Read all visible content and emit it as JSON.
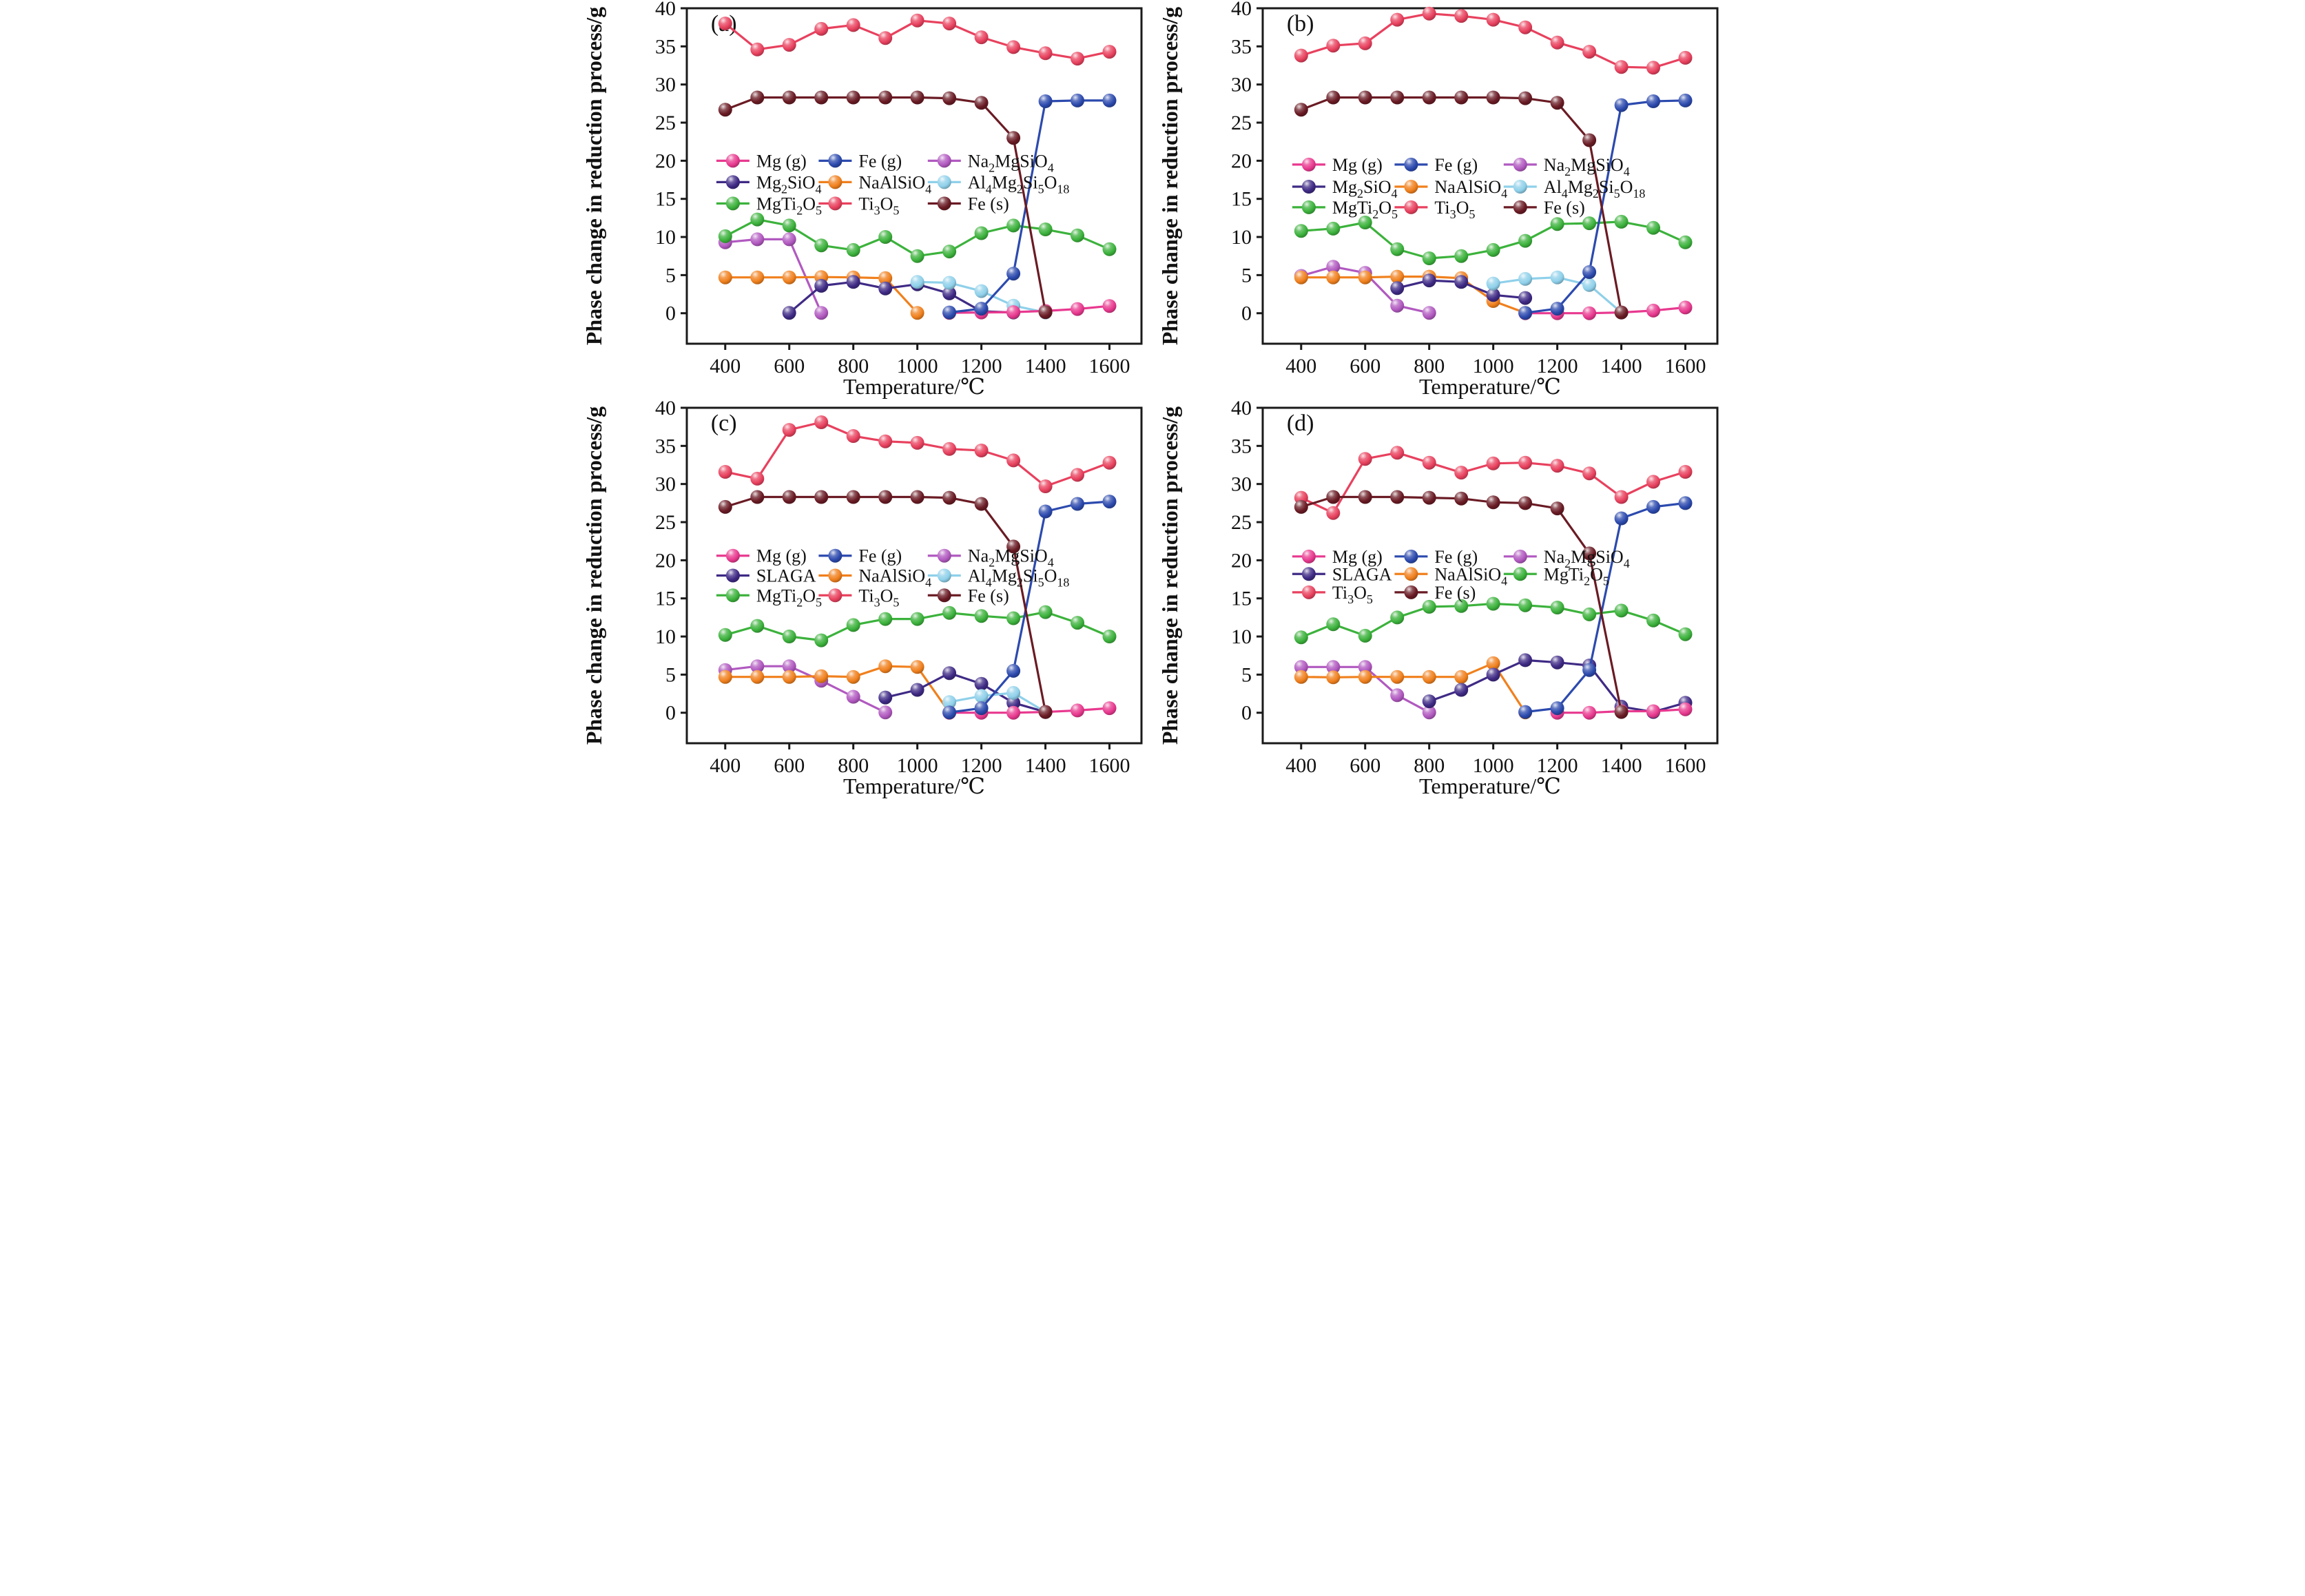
{
  "figure": {
    "background": "#ffffff",
    "ylabel": "Phase change in reduction process/g",
    "xlabel": "Temperature/℃",
    "x_ticks": [
      400,
      600,
      800,
      1000,
      1200,
      1400,
      1600
    ],
    "y_ticks": [
      0,
      5,
      10,
      15,
      20,
      25,
      30,
      35,
      40
    ],
    "x_domain": [
      280,
      1700
    ],
    "y_domain": [
      -4,
      40
    ],
    "frame_color": "#1a1a1a"
  },
  "series_palette": {
    "mg_g": {
      "name": "Mg (g)",
      "color": "#E8398F"
    },
    "fe_g": {
      "name": "Fe (g)",
      "color": "#2C4AAE"
    },
    "na2mgsio4": {
      "name": "Na_2MgSiO_4",
      "color": "#B159C0"
    },
    "mg2sio4": {
      "name": "Mg_2SiO_4",
      "color": "#3F2A85"
    },
    "slaga": {
      "name": "SLAGA",
      "color": "#3F2A85"
    },
    "naalsio4": {
      "name": "NaAlSiO_4",
      "color": "#F0801D"
    },
    "al4mg2si5o18": {
      "name": "Al_4Mg_2Si_5O_18",
      "color": "#8FD0EA"
    },
    "mgti2o5": {
      "name": "MgTi_2O_5",
      "color": "#3CB23C"
    },
    "ti3o5": {
      "name": "Ti_3O_5",
      "color": "#E8415E"
    },
    "fe_s": {
      "name": "Fe (s)",
      "color": "#6A1B24"
    }
  },
  "chart_data": [
    {
      "type": "line",
      "panel_label": "(a)",
      "legend_rows": [
        [
          "mg_g",
          "fe_g",
          "na2mgsio4"
        ],
        [
          "mg2sio4",
          "naalsio4",
          "al4mg2si5o18"
        ],
        [
          "mgti2o5",
          "ti3o5",
          "fe_s"
        ]
      ],
      "legend_row_y": [
        20.0,
        17.2,
        14.4
      ],
      "series": [
        {
          "id": "na2mgsio4",
          "x": [
            400,
            500,
            600,
            700
          ],
          "y": [
            9.3,
            9.7,
            9.7,
            0.05
          ]
        },
        {
          "id": "mgti2o5",
          "x": [
            400,
            500,
            600,
            700,
            800,
            900,
            1000,
            1100,
            1200,
            1300,
            1400,
            1500,
            1600
          ],
          "y": [
            10.1,
            12.3,
            11.5,
            8.9,
            8.3,
            10.0,
            7.5,
            8.1,
            10.5,
            11.5,
            11.0,
            10.2,
            8.4
          ]
        },
        {
          "id": "naalsio4",
          "x": [
            400,
            500,
            600,
            700,
            800,
            900,
            1000
          ],
          "y": [
            4.7,
            4.7,
            4.7,
            4.75,
            4.7,
            4.6,
            0.05
          ]
        },
        {
          "id": "mg2sio4",
          "x": [
            600,
            700,
            800,
            900,
            1000,
            1100,
            1200,
            1300
          ],
          "y": [
            0.05,
            3.6,
            4.1,
            3.25,
            3.8,
            2.6,
            0.25,
            0.1
          ]
        },
        {
          "id": "al4mg2si5o18",
          "x": [
            1000,
            1100,
            1200,
            1300,
            1400
          ],
          "y": [
            4.1,
            4.0,
            2.9,
            1.0,
            0.1
          ]
        },
        {
          "id": "mg_g",
          "x": [
            1100,
            1200,
            1300,
            1400,
            1500,
            1600
          ],
          "y": [
            0.05,
            0.1,
            0.15,
            0.3,
            0.55,
            0.95
          ]
        },
        {
          "id": "fe_g",
          "x": [
            1100,
            1200,
            1300,
            1400,
            1500,
            1600
          ],
          "y": [
            0.1,
            0.6,
            5.2,
            27.8,
            27.9,
            27.9
          ]
        },
        {
          "id": "ti3o5",
          "x": [
            400,
            500,
            600,
            700,
            800,
            900,
            1000,
            1100,
            1200,
            1300,
            1400,
            1500,
            1600
          ],
          "y": [
            38.0,
            34.6,
            35.2,
            37.3,
            37.8,
            36.1,
            38.4,
            38.0,
            36.2,
            34.9,
            34.1,
            33.4,
            34.3
          ]
        },
        {
          "id": "fe_s",
          "x": [
            400,
            500,
            600,
            700,
            800,
            900,
            1000,
            1100,
            1200,
            1300,
            1400
          ],
          "y": [
            26.7,
            28.3,
            28.3,
            28.3,
            28.3,
            28.3,
            28.3,
            28.2,
            27.6,
            23.0,
            0.15
          ]
        }
      ]
    },
    {
      "type": "line",
      "panel_label": "(b)",
      "legend_rows": [
        [
          "mg_g",
          "fe_g",
          "na2mgsio4"
        ],
        [
          "mg2sio4",
          "naalsio4",
          "al4mg2si5o18"
        ],
        [
          "mgti2o5",
          "ti3o5",
          "fe_s"
        ]
      ],
      "legend_row_y": [
        19.5,
        16.6,
        13.9
      ],
      "series": [
        {
          "id": "na2mgsio4",
          "x": [
            400,
            500,
            600,
            700,
            800
          ],
          "y": [
            4.9,
            6.1,
            5.3,
            1.0,
            0.05
          ]
        },
        {
          "id": "mgti2o5",
          "x": [
            400,
            500,
            600,
            700,
            800,
            900,
            1000,
            1100,
            1200,
            1300,
            1400,
            1500,
            1600
          ],
          "y": [
            10.8,
            11.1,
            11.9,
            8.4,
            7.2,
            7.5,
            8.3,
            9.5,
            11.7,
            11.8,
            12.0,
            11.2,
            9.3
          ]
        },
        {
          "id": "naalsio4",
          "x": [
            400,
            500,
            600,
            700,
            800,
            900,
            1000,
            1100
          ],
          "y": [
            4.7,
            4.7,
            4.7,
            4.8,
            4.8,
            4.6,
            1.6,
            0.05
          ]
        },
        {
          "id": "mg2sio4",
          "x": [
            700,
            800,
            900,
            1000,
            1100
          ],
          "y": [
            3.3,
            4.3,
            4.1,
            2.4,
            2.0
          ]
        },
        {
          "id": "al4mg2si5o18",
          "x": [
            1000,
            1100,
            1200,
            1300,
            1400
          ],
          "y": [
            3.9,
            4.5,
            4.7,
            3.7,
            0.1
          ]
        },
        {
          "id": "mg_g",
          "x": [
            1100,
            1200,
            1300,
            1400,
            1500,
            1600
          ],
          "y": [
            0.0,
            0.0,
            0.0,
            0.1,
            0.35,
            0.75
          ]
        },
        {
          "id": "fe_g",
          "x": [
            1100,
            1200,
            1300,
            1400,
            1500,
            1600
          ],
          "y": [
            0.05,
            0.6,
            5.4,
            27.3,
            27.8,
            27.9
          ]
        },
        {
          "id": "ti3o5",
          "x": [
            400,
            500,
            600,
            700,
            800,
            900,
            1000,
            1100,
            1200,
            1300,
            1400,
            1500,
            1600
          ],
          "y": [
            33.8,
            35.1,
            35.4,
            38.5,
            39.3,
            39.0,
            38.5,
            37.5,
            35.5,
            34.3,
            32.3,
            32.2,
            33.5
          ]
        },
        {
          "id": "fe_s",
          "x": [
            400,
            500,
            600,
            700,
            800,
            900,
            1000,
            1100,
            1200,
            1300,
            1400
          ],
          "y": [
            26.7,
            28.3,
            28.3,
            28.3,
            28.3,
            28.3,
            28.3,
            28.2,
            27.6,
            22.7,
            0.1
          ]
        }
      ]
    },
    {
      "type": "line",
      "panel_label": "(c)",
      "legend_rows": [
        [
          "mg_g",
          "fe_g",
          "na2mgsio4"
        ],
        [
          "slaga",
          "naalsio4",
          "al4mg2si5o18"
        ],
        [
          "mgti2o5",
          "ti3o5",
          "fe_s"
        ]
      ],
      "legend_row_y": [
        20.6,
        18.0,
        15.4
      ],
      "series": [
        {
          "id": "na2mgsio4",
          "x": [
            400,
            500,
            600,
            700,
            800,
            900
          ],
          "y": [
            5.6,
            6.1,
            6.1,
            4.2,
            2.1,
            0.05
          ]
        },
        {
          "id": "mgti2o5",
          "x": [
            400,
            500,
            600,
            700,
            800,
            900,
            1000,
            1100,
            1200,
            1300,
            1400,
            1500,
            1600
          ],
          "y": [
            10.2,
            11.4,
            10.0,
            9.5,
            11.5,
            12.3,
            12.3,
            13.1,
            12.7,
            12.4,
            13.2,
            11.8,
            10.0
          ]
        },
        {
          "id": "naalsio4",
          "x": [
            400,
            500,
            600,
            700,
            800,
            900,
            1000,
            1100
          ],
          "y": [
            4.7,
            4.7,
            4.7,
            4.8,
            4.7,
            6.1,
            6.0,
            0.05
          ]
        },
        {
          "id": "slaga",
          "x": [
            900,
            1000,
            1100,
            1200,
            1300,
            1400
          ],
          "y": [
            2.0,
            3.0,
            5.2,
            3.8,
            1.3,
            0.1
          ]
        },
        {
          "id": "al4mg2si5o18",
          "x": [
            1100,
            1200,
            1300,
            1400
          ],
          "y": [
            1.4,
            2.2,
            2.6,
            0.1
          ]
        },
        {
          "id": "mg_g",
          "x": [
            1100,
            1200,
            1300,
            1400,
            1500,
            1600
          ],
          "y": [
            0.0,
            0.0,
            0.0,
            0.1,
            0.3,
            0.6
          ]
        },
        {
          "id": "fe_g",
          "x": [
            1100,
            1200,
            1300,
            1400,
            1500,
            1600
          ],
          "y": [
            0.05,
            0.6,
            5.5,
            26.4,
            27.4,
            27.7
          ]
        },
        {
          "id": "ti3o5",
          "x": [
            400,
            500,
            600,
            700,
            800,
            900,
            1000,
            1100,
            1200,
            1300,
            1400,
            1500,
            1600
          ],
          "y": [
            31.6,
            30.7,
            37.1,
            38.1,
            36.3,
            35.6,
            35.4,
            34.6,
            34.4,
            33.1,
            29.7,
            31.2,
            32.8
          ]
        },
        {
          "id": "fe_s",
          "x": [
            400,
            500,
            600,
            700,
            800,
            900,
            1000,
            1100,
            1200,
            1300,
            1400
          ],
          "y": [
            27.0,
            28.3,
            28.3,
            28.3,
            28.3,
            28.3,
            28.3,
            28.2,
            27.4,
            21.8,
            0.1
          ]
        }
      ]
    },
    {
      "type": "line",
      "panel_label": "(d)",
      "legend_rows": [
        [
          "mg_g",
          "fe_g",
          "na2mgsio4"
        ],
        [
          "slaga",
          "naalsio4",
          "mgti2o5"
        ],
        [
          "ti3o5",
          "fe_s"
        ]
      ],
      "legend_row_y": [
        20.5,
        18.2,
        15.8
      ],
      "series": [
        {
          "id": "na2mgsio4",
          "x": [
            400,
            500,
            600,
            700,
            800
          ],
          "y": [
            6.0,
            6.0,
            6.0,
            2.3,
            0.05
          ]
        },
        {
          "id": "mgti2o5",
          "x": [
            400,
            500,
            600,
            700,
            800,
            900,
            1000,
            1100,
            1200,
            1300,
            1400,
            1500,
            1600
          ],
          "y": [
            9.9,
            11.6,
            10.1,
            12.5,
            13.9,
            14.0,
            14.3,
            14.1,
            13.8,
            12.9,
            13.4,
            12.1,
            10.3
          ]
        },
        {
          "id": "naalsio4",
          "x": [
            400,
            500,
            600,
            700,
            800,
            900,
            1000,
            1100
          ],
          "y": [
            4.7,
            4.65,
            4.7,
            4.7,
            4.7,
            4.7,
            6.5,
            0.05
          ]
        },
        {
          "id": "slaga",
          "x": [
            800,
            900,
            1000,
            1100,
            1200,
            1300,
            1400,
            1500,
            1600
          ],
          "y": [
            1.5,
            3.0,
            5.0,
            6.9,
            6.6,
            6.2,
            0.8,
            0.1,
            1.3
          ]
        },
        {
          "id": "mg_g",
          "x": [
            1200,
            1300,
            1400,
            1500,
            1600
          ],
          "y": [
            0.0,
            0.0,
            0.2,
            0.2,
            0.45
          ]
        },
        {
          "id": "fe_g",
          "x": [
            1100,
            1200,
            1300,
            1400,
            1500,
            1600
          ],
          "y": [
            0.1,
            0.6,
            5.6,
            25.5,
            27.0,
            27.5
          ]
        },
        {
          "id": "ti3o5",
          "x": [
            400,
            500,
            600,
            700,
            800,
            900,
            1000,
            1100,
            1200,
            1300,
            1400,
            1500,
            1600
          ],
          "y": [
            28.2,
            26.2,
            33.3,
            34.1,
            32.8,
            31.5,
            32.7,
            32.8,
            32.4,
            31.4,
            28.3,
            30.3,
            31.6
          ]
        },
        {
          "id": "fe_s",
          "x": [
            400,
            500,
            600,
            700,
            800,
            900,
            1000,
            1100,
            1200,
            1300,
            1400
          ],
          "y": [
            27.0,
            28.3,
            28.3,
            28.3,
            28.2,
            28.1,
            27.6,
            27.5,
            26.8,
            20.9,
            0.1
          ]
        }
      ]
    }
  ]
}
